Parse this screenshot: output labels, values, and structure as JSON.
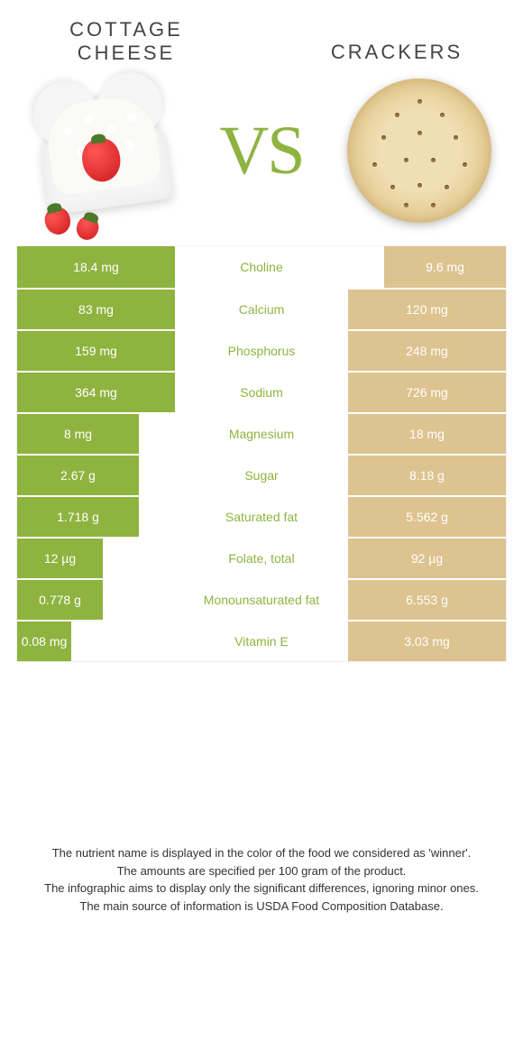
{
  "colors": {
    "green": "#8fb33f",
    "tan": "#ddc38f",
    "text": "#333333",
    "bg": "#ffffff"
  },
  "header": {
    "left_title": "COTTAGE CHEESE",
    "right_title": "CRACKERS",
    "vs": "VS"
  },
  "table": {
    "type": "comparison-table",
    "left_color": "#8fb33f",
    "right_color": "#ddc38f",
    "label_color": "#8fb33f",
    "rows": [
      {
        "label": "Choline",
        "left": "18.4 mg",
        "right": "9.6 mg",
        "left_w": "w-big",
        "right_w": "w-small"
      },
      {
        "label": "Calcium",
        "left": "83 mg",
        "right": "120 mg",
        "left_w": "w-big",
        "right_w": "w-big"
      },
      {
        "label": "Phosphorus",
        "left": "159 mg",
        "right": "248 mg",
        "left_w": "w-big",
        "right_w": "w-big"
      },
      {
        "label": "Sodium",
        "left": "364 mg",
        "right": "726 mg",
        "left_w": "w-big",
        "right_w": "w-big"
      },
      {
        "label": "Magnesium",
        "left": "8 mg",
        "right": "18 mg",
        "left_w": "w-small",
        "right_w": "w-big"
      },
      {
        "label": "Sugar",
        "left": "2.67 g",
        "right": "8.18 g",
        "left_w": "w-small",
        "right_w": "w-big"
      },
      {
        "label": "Saturated fat",
        "left": "1.718 g",
        "right": "5.562 g",
        "left_w": "w-small",
        "right_w": "w-big"
      },
      {
        "label": "Folate, total",
        "left": "12 µg",
        "right": "92 µg",
        "left_w": "w-smaller",
        "right_w": "w-big"
      },
      {
        "label": "Monounsaturated fat",
        "left": "0.778 g",
        "right": "6.553 g",
        "left_w": "w-smaller",
        "right_w": "w-big"
      },
      {
        "label": "Vitamin E",
        "left": "0.08 mg",
        "right": "3.03 mg",
        "left_w": "w-tiny",
        "right_w": "w-big"
      }
    ]
  },
  "footer": {
    "line1": "The nutrient name is displayed in the color of the food we considered as 'winner'.",
    "line2": "The amounts are specified per 100 gram of the product.",
    "line3": "The infographic aims to display only the significant differences, ignoring minor ones.",
    "line4": "The main source of information is USDA Food Composition Database."
  }
}
